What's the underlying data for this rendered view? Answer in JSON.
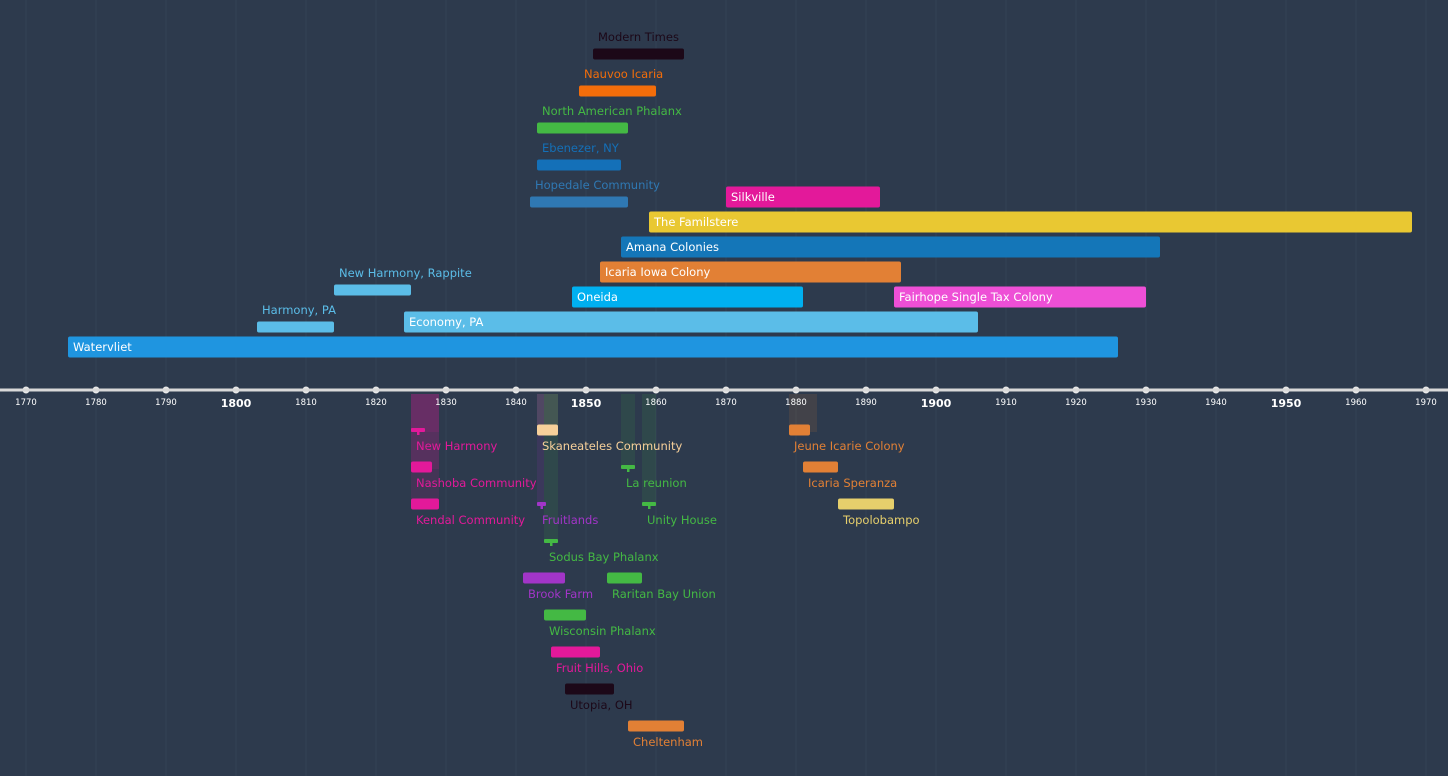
{
  "chart_data": {
    "type": "timeline",
    "x_axis": {
      "range": [
        1766,
        1972
      ],
      "ticks": [
        1770,
        1780,
        1790,
        1800,
        1810,
        1820,
        1830,
        1840,
        1850,
        1860,
        1870,
        1880,
        1890,
        1900,
        1910,
        1920,
        1930,
        1940,
        1950,
        1960,
        1970
      ],
      "major_ticks": [
        1800,
        1850,
        1900,
        1950
      ],
      "grid": true
    },
    "colors": {
      "background": "#2d3a4d",
      "axis": "#d9d9d9",
      "grid": "#344255"
    },
    "above": [
      {
        "name": "Watervliet",
        "start": 1776,
        "end": 1926,
        "color": "#1f95e0",
        "label_inside": true
      },
      {
        "name": "Harmony, PA",
        "start": 1803,
        "end": 1814,
        "color": "#5bbde8",
        "label_inside": false
      },
      {
        "name": "Economy, PA",
        "start": 1824,
        "end": 1906,
        "color": "#5bbde8",
        "label_inside": true
      },
      {
        "name": "New Harmony, Rappite",
        "start": 1814,
        "end": 1825,
        "color": "#5bbde8",
        "label_inside": false
      },
      {
        "name": "Oneida",
        "start": 1848,
        "end": 1881,
        "color": "#00b0f0",
        "label_inside": true
      },
      {
        "name": "Fairhope Single Tax Colony",
        "start": 1894,
        "end": 1930,
        "color": "#ee4fd6",
        "label_inside": true
      },
      {
        "name": "Icaria Iowa Colony",
        "start": 1852,
        "end": 1895,
        "color": "#e28035",
        "label_inside": true
      },
      {
        "name": "Amana Colonies",
        "start": 1855,
        "end": 1932,
        "color": "#1476b8",
        "label_inside": true
      },
      {
        "name": "The Familstere",
        "start": 1859,
        "end": 1968,
        "color": "#e9c832",
        "label_inside": true
      },
      {
        "name": "Hopedale Community",
        "start": 1842,
        "end": 1856,
        "color": "#2f78b3",
        "label_inside": false
      },
      {
        "name": "Silkville",
        "start": 1870,
        "end": 1892,
        "color": "#e3199a",
        "label_inside": true
      },
      {
        "name": "Ebenezer, NY",
        "start": 1843,
        "end": 1855,
        "color": "#1470b8",
        "label_inside": false
      },
      {
        "name": "North American Phalanx",
        "start": 1843,
        "end": 1856,
        "color": "#44b944",
        "label_inside": false
      },
      {
        "name": "Nauvoo Icaria",
        "start": 1849,
        "end": 1860,
        "color": "#f36d0a",
        "label_inside": false
      },
      {
        "name": "Modern Times",
        "start": 1851,
        "end": 1864,
        "color": "#1c0818",
        "label_inside": false
      }
    ],
    "below": [
      {
        "name": "New Harmony",
        "start": 1825,
        "end": 1827,
        "color": "#e3199a",
        "span_end": 1829
      },
      {
        "name": "Nashoba Community",
        "start": 1825,
        "end": 1828,
        "color": "#e3199a",
        "span_end": 1829
      },
      {
        "name": "Kendal Community",
        "start": 1825,
        "end": 1829,
        "color": "#e3199a",
        "span_end": 1829
      },
      {
        "name": "Skaneateles Community",
        "start": 1843,
        "end": 1846,
        "color": "#f7d09a",
        "span_end": 1846
      },
      {
        "name": "Fruitlands",
        "start": 1843,
        "end": 1844,
        "color": "#a235c8",
        "span_end": 1844
      },
      {
        "name": "Sodus Bay Phalanx",
        "start": 1844,
        "end": 1846,
        "color": "#44b944",
        "span_end": 1846
      },
      {
        "name": "Brook Farm",
        "start": 1841,
        "end": 1847,
        "color": "#a235c8"
      },
      {
        "name": "Raritan Bay Union",
        "start": 1853,
        "end": 1858,
        "color": "#44b944"
      },
      {
        "name": "Wisconsin Phalanx",
        "start": 1844,
        "end": 1850,
        "color": "#44b944"
      },
      {
        "name": "La reunion",
        "start": 1855,
        "end": 1857,
        "color": "#44b944",
        "span_end": 1857
      },
      {
        "name": "Unity House",
        "start": 1858,
        "end": 1860,
        "color": "#44b944",
        "span_end": 1860
      },
      {
        "name": "Fruit Hills, Ohio",
        "start": 1845,
        "end": 1852,
        "color": "#e3199a"
      },
      {
        "name": "Utopia, OH",
        "start": 1847,
        "end": 1854,
        "color": "#1c0818"
      },
      {
        "name": "Cheltenham",
        "start": 1856,
        "end": 1864,
        "color": "#e28035"
      },
      {
        "name": "Jeune Icarie Colony",
        "start": 1879,
        "end": 1882,
        "color": "#e28035",
        "span_end": 1883
      },
      {
        "name": "Icaria Speranza",
        "start": 1881,
        "end": 1886,
        "color": "#e28035"
      },
      {
        "name": "Topolobampo",
        "start": 1886,
        "end": 1894,
        "color": "#e6cf6c"
      }
    ]
  }
}
